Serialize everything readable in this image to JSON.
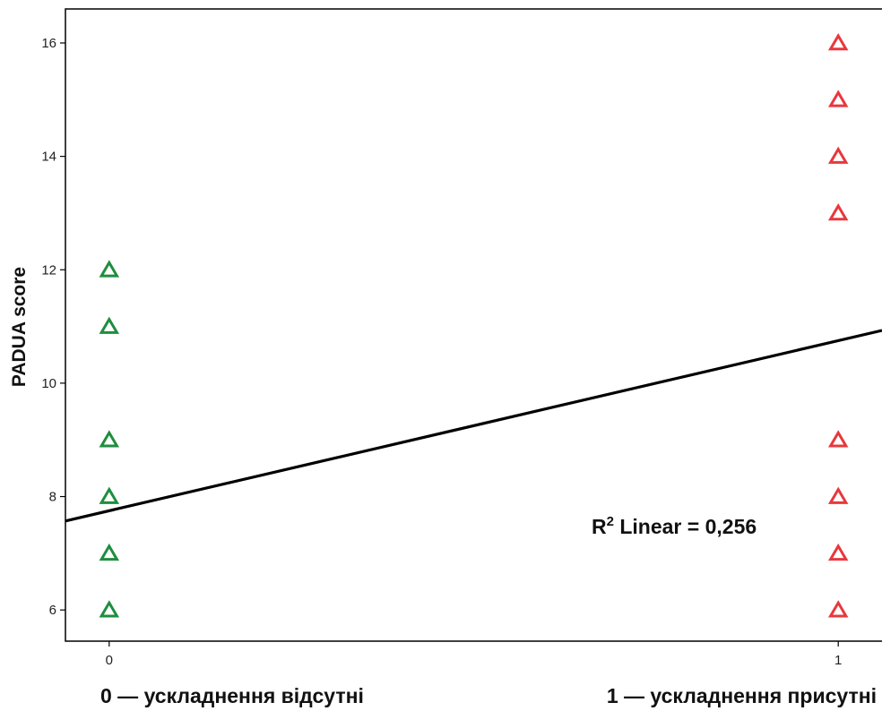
{
  "chart_data": {
    "type": "scatter",
    "ylabel": "PADUA score",
    "xlim": [
      -0.06,
      1.06
    ],
    "ylim": [
      5.45,
      16.6
    ],
    "x_ticks": [
      {
        "value": 0,
        "label": "0"
      },
      {
        "value": 1,
        "label": "1"
      }
    ],
    "y_ticks": [
      {
        "value": 6,
        "label": "6"
      },
      {
        "value": 8,
        "label": "8"
      },
      {
        "value": 10,
        "label": "10"
      },
      {
        "value": 12,
        "label": "12"
      },
      {
        "value": 14,
        "label": "14"
      },
      {
        "value": 16,
        "label": "16"
      }
    ],
    "category_labels": [
      "0 — ускладнення відсутні",
      "1 — ускладнення присутні"
    ],
    "series": [
      {
        "color": "#1e8e3e",
        "marker": "triangle",
        "points": [
          {
            "x": 0,
            "y": 12
          },
          {
            "x": 0,
            "y": 11
          },
          {
            "x": 0,
            "y": 9
          },
          {
            "x": 0,
            "y": 8
          },
          {
            "x": 0,
            "y": 7
          },
          {
            "x": 0,
            "y": 6
          }
        ]
      },
      {
        "color": "#e8383d",
        "marker": "triangle",
        "points": [
          {
            "x": 1,
            "y": 16
          },
          {
            "x": 1,
            "y": 15
          },
          {
            "x": 1,
            "y": 14
          },
          {
            "x": 1,
            "y": 13
          },
          {
            "x": 1,
            "y": 9
          },
          {
            "x": 1,
            "y": 8
          },
          {
            "x": 1,
            "y": 7
          },
          {
            "x": 1,
            "y": 6
          }
        ]
      }
    ],
    "fit_line": {
      "type": "linear",
      "intercept": 7.75,
      "slope": 3.0,
      "color": "#000000"
    },
    "annotation": {
      "prefix": "R",
      "superscript": "2",
      "suffix": " Linear = 0,256"
    },
    "grid": false,
    "legend": "none"
  }
}
